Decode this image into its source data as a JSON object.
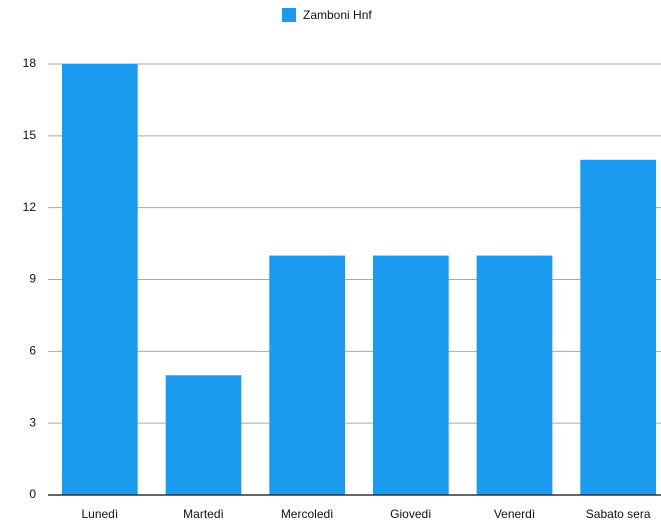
{
  "chart_data": {
    "type": "bar",
    "categories": [
      "Lunedì",
      "Martedì",
      "Mercoledì",
      "Giovedì",
      "Venerdì",
      "Sabato sera"
    ],
    "series": [
      {
        "name": "Zamboni Hnf",
        "color": "#1a9bf0",
        "values": [
          18,
          5,
          10,
          10,
          10,
          14
        ]
      }
    ],
    "ylim": [
      0,
      18
    ],
    "yticks": [
      0,
      3,
      6,
      9,
      12,
      15,
      18
    ],
    "grid": true,
    "legend": "top"
  }
}
